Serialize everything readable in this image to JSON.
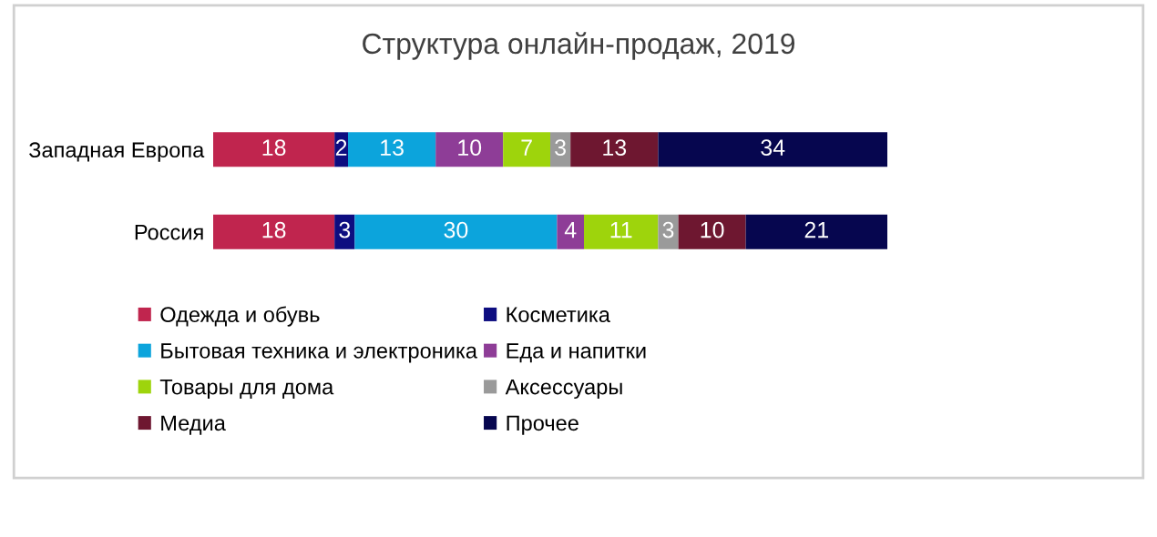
{
  "chart_data": {
    "type": "bar",
    "orientation": "horizontal",
    "stacked": true,
    "data_labels": true,
    "legend": "bottom",
    "grid": false,
    "tick_labels": "y",
    "title": "Структура онлайн-продаж, 2019",
    "categories": [
      "Западная Европа",
      "Россия"
    ],
    "series": [
      {
        "name": "Одежда и обувь",
        "color": "#c0254e",
        "values": [
          18,
          18
        ]
      },
      {
        "name": "Косметика",
        "color": "#0d0d80",
        "values": [
          2,
          3
        ]
      },
      {
        "name": "Бытовая техника и электроника",
        "color": "#0ca4dc",
        "values": [
          13,
          30
        ]
      },
      {
        "name": "Еда и напитки",
        "color": "#8e3d97",
        "values": [
          10,
          4
        ]
      },
      {
        "name": "Товары для дома",
        "color": "#9ed40c",
        "values": [
          7,
          11
        ]
      },
      {
        "name": "Аксессуары",
        "color": "#9a9a9a",
        "values": [
          3,
          3
        ]
      },
      {
        "name": "Медиа",
        "color": "#6e1730",
        "values": [
          13,
          10
        ]
      },
      {
        "name": "Прочее",
        "color": "#06064f",
        "values": [
          34,
          21
        ]
      }
    ]
  }
}
